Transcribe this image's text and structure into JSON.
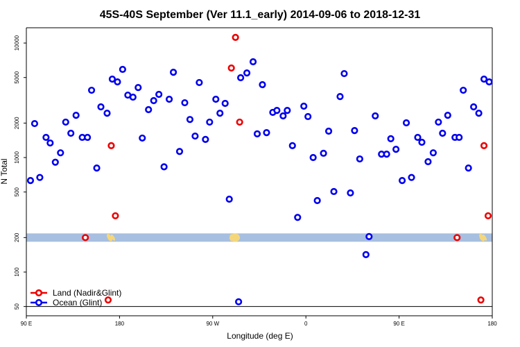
{
  "chart_data": {
    "type": "scatter",
    "title": "45S-40S September (Ver 11.1_early)   2014-09-06 to 2018-12-31",
    "xlabel": "Longitude (deg E)",
    "ylabel": "N Total",
    "xlim": [
      90,
      540
    ],
    "xticks": [
      {
        "value": 90,
        "label": "90 E"
      },
      {
        "value": 180,
        "label": "180"
      },
      {
        "value": 270,
        "label": "90 W"
      },
      {
        "value": 360,
        "label": "0"
      },
      {
        "value": 450,
        "label": "90 E"
      },
      {
        "value": 540,
        "label": "180"
      }
    ],
    "ylim": [
      41.5,
      13600
    ],
    "log_y": true,
    "yticks": [
      50,
      100,
      200,
      500,
      1000,
      2000,
      5000,
      10000
    ],
    "reference_line": 50,
    "band": 200,
    "legend": "bottom-left",
    "series": [
      {
        "name": "Land (Nadir&Glint)",
        "color": "#ee0000",
        "x": [
          147,
          169,
          172,
          176,
          288,
          292,
          296,
          506,
          529,
          532,
          536
        ],
        "values": [
          200,
          57,
          1270,
          310,
          6050,
          11200,
          2040,
          200,
          57,
          1270,
          310
        ]
      },
      {
        "name": "Ocean (Glint)",
        "color": "#0000ee",
        "x": [
          94,
          98,
          103,
          109,
          113,
          118,
          123,
          128,
          133,
          138,
          144,
          149,
          153,
          158,
          162,
          168,
          173,
          178,
          183,
          188,
          193,
          198,
          202,
          208,
          213,
          218,
          223,
          228,
          232,
          238,
          243,
          248,
          253,
          257,
          263,
          267,
          273,
          277,
          282,
          286,
          295,
          297,
          303,
          309,
          313,
          318,
          322,
          328,
          332,
          338,
          342,
          347,
          352,
          358,
          362,
          367,
          371,
          377,
          382,
          387,
          393,
          397,
          403,
          407,
          412,
          418,
          421,
          427,
          433,
          438,
          442,
          447,
          453,
          457,
          462,
          468,
          472,
          478,
          483,
          488,
          492,
          497,
          504,
          508,
          512,
          517,
          522,
          527,
          532,
          537
        ],
        "values": [
          630,
          1980,
          670,
          1500,
          1340,
          910,
          1100,
          2040,
          1630,
          2340,
          1500,
          1500,
          3870,
          810,
          2770,
          2440,
          4840,
          4580,
          5890,
          3510,
          3370,
          4090,
          1480,
          2620,
          3140,
          3560,
          830,
          3230,
          5560,
          1130,
          3010,
          2150,
          1540,
          4520,
          1440,
          2040,
          3230,
          2440,
          2970,
          433,
          55,
          4980,
          5480,
          6860,
          1610,
          4330,
          1650,
          2480,
          2580,
          2310,
          2580,
          1270,
          300,
          2810,
          2280,
          1000,
          421,
          1090,
          1700,
          505,
          3410,
          5410,
          491,
          1720,
          972,
          142,
          204,
          2310,
          1070,
          1070,
          1460,
          1180,
          630,
          2010,
          670,
          1500,
          1360,
          920,
          1100,
          2040,
          1630,
          2340,
          1500,
          1500,
          3870,
          810,
          2770,
          2440,
          4840,
          4580
        ]
      }
    ]
  }
}
